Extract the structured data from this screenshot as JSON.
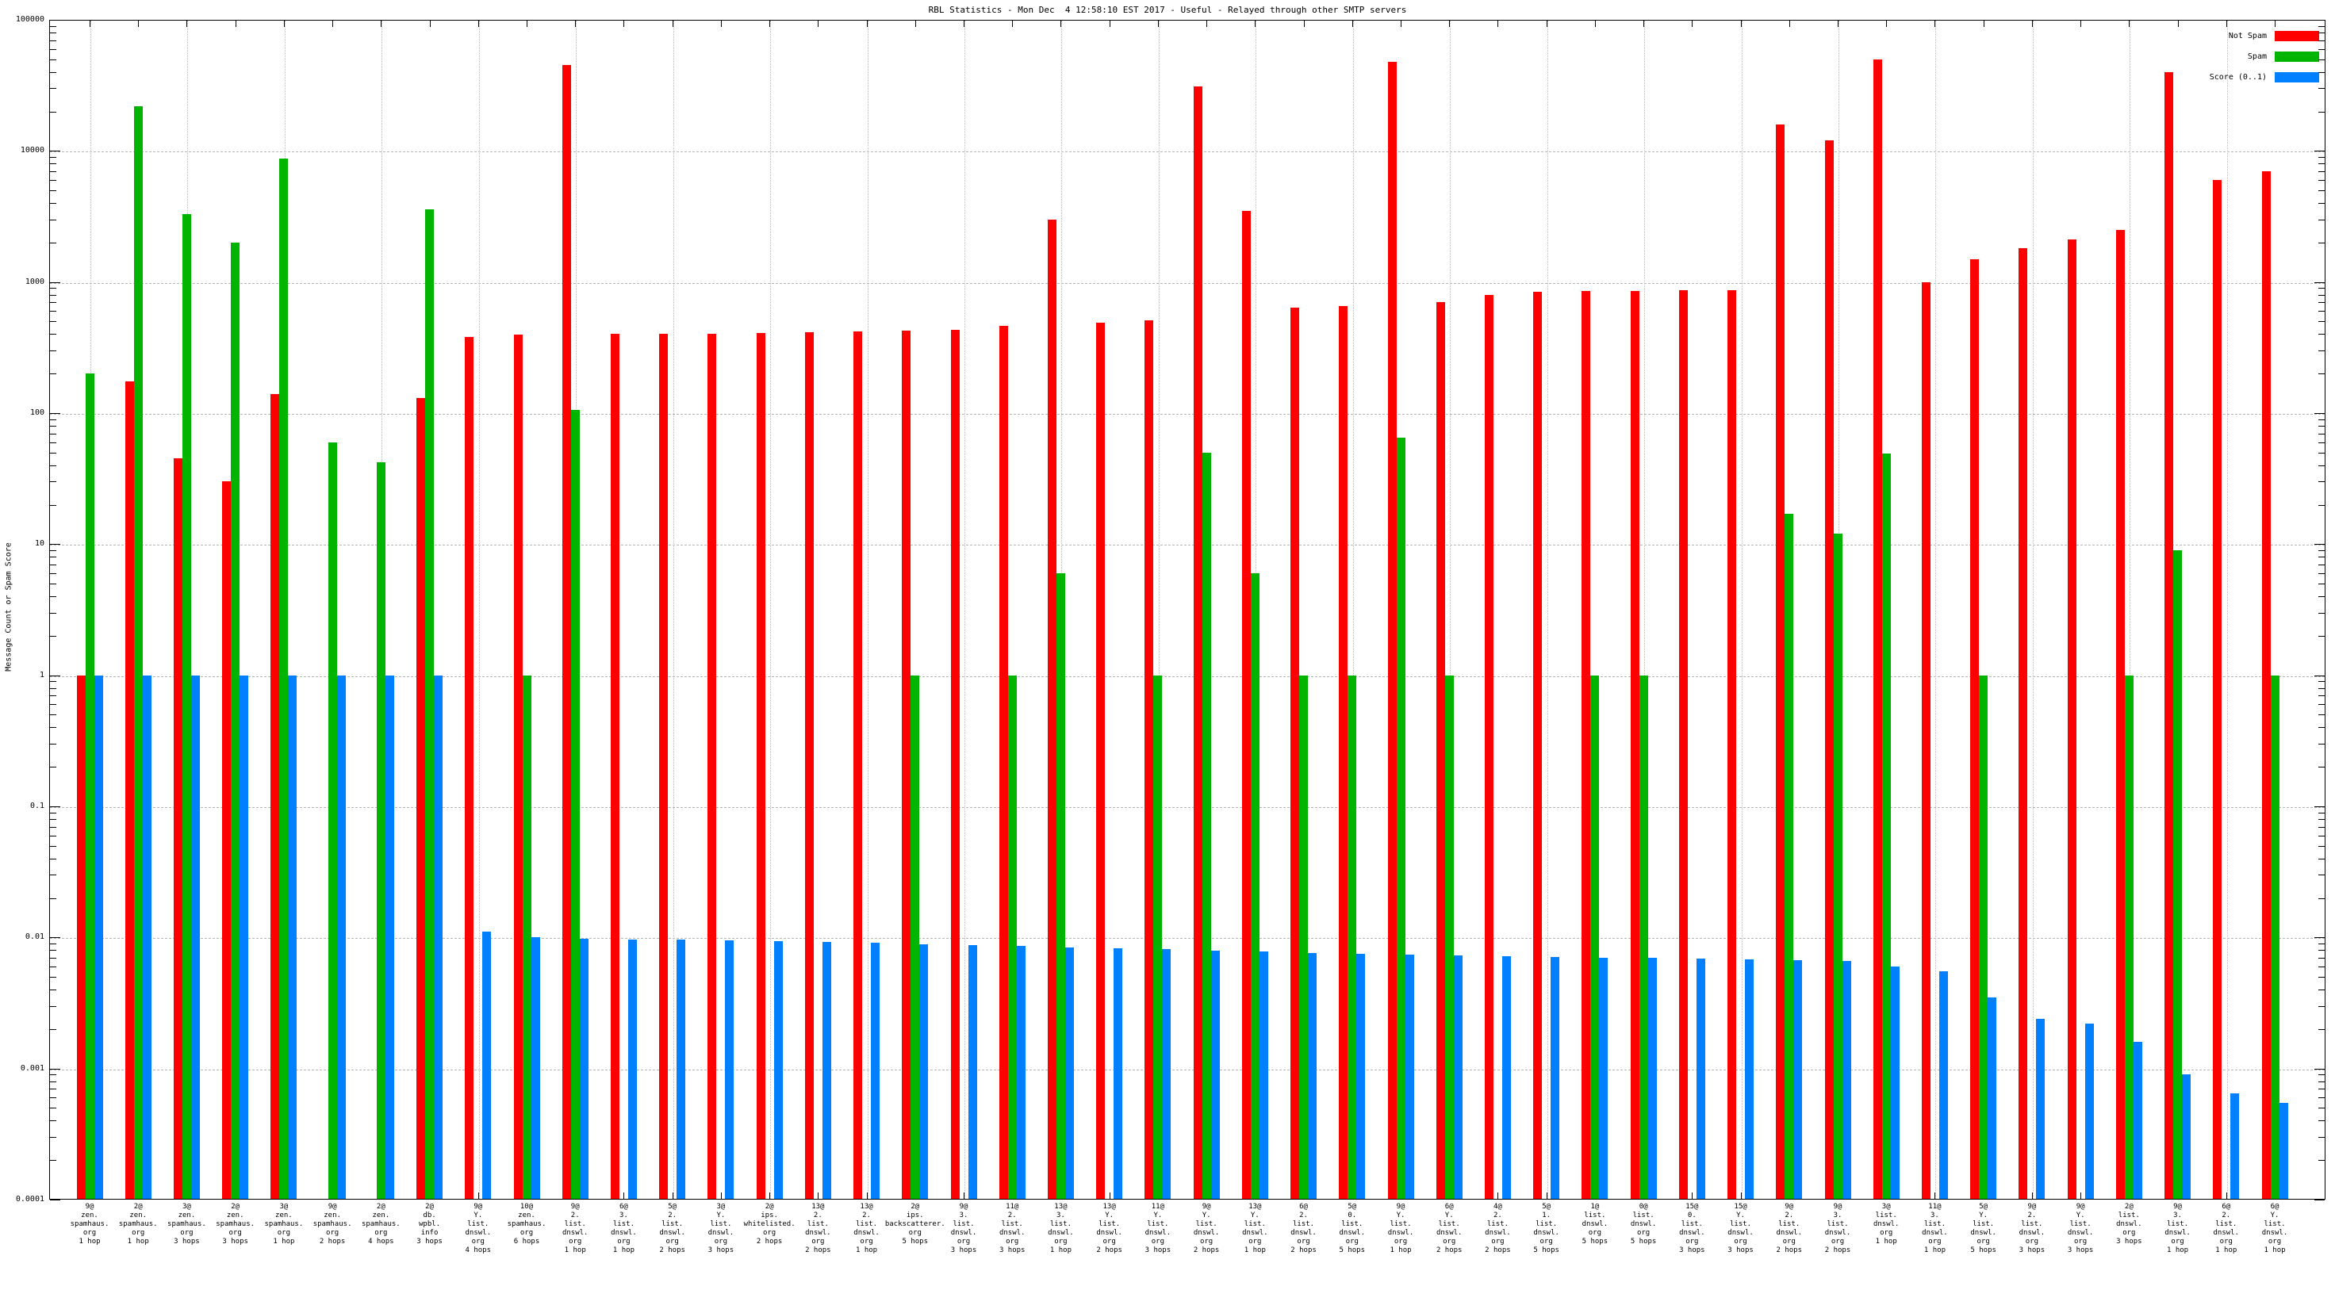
{
  "title": "RBL Statistics - Mon Dec  4 12:58:10 EST 2017 - Useful - Relayed through other SMTP servers",
  "ylabel": "Message Count or Spam Score",
  "legend": [
    {
      "label": "Not Spam",
      "color": "#ff0000"
    },
    {
      "label": "Spam",
      "color": "#00b400"
    },
    {
      "label": "Score (0..1)",
      "color": "#0080ff"
    }
  ],
  "colors": {
    "not_spam": "#ff0000",
    "spam": "#00b400",
    "score": "#0080ff",
    "grid": "#b5b5b5"
  },
  "chart_data": {
    "type": "bar",
    "log_scale": true,
    "ylim": [
      0.0001,
      100000
    ],
    "ytick_labels": [
      "100000",
      "10000",
      "1000",
      "100",
      "10",
      "1",
      "0.1",
      "0.01",
      "0.001",
      "0.0001"
    ],
    "grid": "horizontal dashed per decade, vertical dotted every other category",
    "legend_position": "top-right",
    "categories": [
      [
        "9@",
        "zen.",
        "spamhaus.",
        "org",
        "1 hop"
      ],
      [
        "2@",
        "zen.",
        "spamhaus.",
        "org",
        "1 hop"
      ],
      [
        "3@",
        "zen.",
        "spamhaus.",
        "org",
        "3 hops"
      ],
      [
        "2@",
        "zen.",
        "spamhaus.",
        "org",
        "3 hops"
      ],
      [
        "3@",
        "zen.",
        "spamhaus.",
        "org",
        "1 hop"
      ],
      [
        "9@",
        "zen.",
        "spamhaus.",
        "org",
        "2 hops"
      ],
      [
        "2@",
        "zen.",
        "spamhaus.",
        "org",
        "4 hops"
      ],
      [
        "2@",
        "db.",
        "wpbl.",
        "info",
        "3 hops"
      ],
      [
        "9@",
        "Y.",
        "list.",
        "dnswl.",
        "org",
        "4 hops"
      ],
      [
        "10@",
        "zen.",
        "spamhaus.",
        "org",
        "6 hops"
      ],
      [
        "9@",
        "2.",
        "list.",
        "dnswl.",
        "org",
        "1 hop"
      ],
      [
        "6@",
        "3.",
        "list.",
        "dnswl.",
        "org",
        "1 hop"
      ],
      [
        "5@",
        "2.",
        "list.",
        "dnswl.",
        "org",
        "2 hops"
      ],
      [
        "3@",
        "Y.",
        "list.",
        "dnswl.",
        "org",
        "3 hops"
      ],
      [
        "2@",
        "ips.",
        "whitelisted.",
        "org",
        "2 hops"
      ],
      [
        "13@",
        "2.",
        "list.",
        "dnswl.",
        "org",
        "2 hops"
      ],
      [
        "13@",
        "2.",
        "list.",
        "dnswl.",
        "org",
        "1 hop"
      ],
      [
        "2@",
        "ips.",
        "backscatterer.",
        "org",
        "5 hops"
      ],
      [
        "9@",
        "3.",
        "list.",
        "dnswl.",
        "org",
        "3 hops"
      ],
      [
        "11@",
        "2.",
        "list.",
        "dnswl.",
        "org",
        "3 hops"
      ],
      [
        "13@",
        "3.",
        "list.",
        "dnswl.",
        "org",
        "1 hop"
      ],
      [
        "13@",
        "Y.",
        "list.",
        "dnswl.",
        "org",
        "2 hops"
      ],
      [
        "11@",
        "Y.",
        "list.",
        "dnswl.",
        "org",
        "3 hops"
      ],
      [
        "9@",
        "Y.",
        "list.",
        "dnswl.",
        "org",
        "2 hops"
      ],
      [
        "13@",
        "Y.",
        "list.",
        "dnswl.",
        "org",
        "1 hop"
      ],
      [
        "6@",
        "2.",
        "list.",
        "dnswl.",
        "org",
        "2 hops"
      ],
      [
        "5@",
        "0.",
        "list.",
        "dnswl.",
        "org",
        "5 hops"
      ],
      [
        "9@",
        "Y.",
        "list.",
        "dnswl.",
        "org",
        "1 hop"
      ],
      [
        "6@",
        "Y.",
        "list.",
        "dnswl.",
        "org",
        "2 hops"
      ],
      [
        "4@",
        "2.",
        "list.",
        "dnswl.",
        "org",
        "2 hops"
      ],
      [
        "5@",
        "1.",
        "list.",
        "dnswl.",
        "org",
        "5 hops"
      ],
      [
        "1@",
        "list.",
        "dnswl.",
        "org",
        "5 hops"
      ],
      [
        "0@",
        "list.",
        "dnswl.",
        "org",
        "5 hops"
      ],
      [
        "15@",
        "0.",
        "list.",
        "dnswl.",
        "org",
        "3 hops"
      ],
      [
        "15@",
        "Y.",
        "list.",
        "dnswl.",
        "org",
        "3 hops"
      ],
      [
        "9@",
        "2.",
        "list.",
        "dnswl.",
        "org",
        "2 hops"
      ],
      [
        "9@",
        "3.",
        "list.",
        "dnswl.",
        "org",
        "2 hops"
      ],
      [
        "3@",
        "list.",
        "dnswl.",
        "org",
        "1 hop"
      ],
      [
        "11@",
        "3.",
        "list.",
        "dnswl.",
        "org",
        "1 hop"
      ],
      [
        "5@",
        "Y.",
        "list.",
        "dnswl.",
        "org",
        "5 hops"
      ],
      [
        "9@",
        "2.",
        "list.",
        "dnswl.",
        "org",
        "3 hops"
      ],
      [
        "9@",
        "Y.",
        "list.",
        "dnswl.",
        "org",
        "3 hops"
      ],
      [
        "2@",
        "list.",
        "dnswl.",
        "org",
        "3 hops"
      ],
      [
        "9@",
        "3.",
        "list.",
        "dnswl.",
        "org",
        "1 hop"
      ],
      [
        "6@",
        "2.",
        "list.",
        "dnswl.",
        "org",
        "1 hop"
      ],
      [
        "6@",
        "Y.",
        "list.",
        "dnswl.",
        "org",
        "1 hop"
      ]
    ],
    "series": [
      {
        "name": "Not Spam",
        "color": "#ff0000",
        "values": [
          1,
          175,
          45,
          30,
          140,
          0,
          0,
          130,
          380,
          395,
          45000,
          400,
          400,
          405,
          410,
          415,
          420,
          425,
          430,
          465,
          3000,
          490,
          510,
          31000,
          3500,
          640,
          660,
          48000,
          700,
          800,
          840,
          850,
          855,
          860,
          865,
          16000,
          12000,
          50000,
          1000,
          1500,
          1800,
          2100,
          2500,
          40000,
          6000,
          7000
        ]
      },
      {
        "name": "Spam",
        "color": "#00b400",
        "values": [
          200,
          22000,
          3300,
          2000,
          8800,
          60,
          42,
          3600,
          0,
          1,
          105,
          0,
          0,
          0,
          0,
          0,
          0,
          1,
          0,
          1,
          6,
          0,
          1,
          50,
          6,
          1,
          1,
          65,
          1,
          0,
          0,
          1,
          1,
          0,
          0,
          17,
          12,
          49,
          0,
          1,
          0,
          0,
          1,
          9,
          0,
          1
        ]
      },
      {
        "name": "Score (0..1)",
        "color": "#0080ff",
        "values": [
          1,
          1,
          1,
          1,
          1,
          1,
          1,
          1,
          0.011,
          0.01,
          0.0098,
          0.0097,
          0.0096,
          0.0095,
          0.0094,
          0.0092,
          0.0091,
          0.0089,
          0.0088,
          0.0086,
          0.0084,
          0.0083,
          0.0081,
          0.0079,
          0.0078,
          0.0076,
          0.0075,
          0.0074,
          0.0073,
          0.0072,
          0.0071,
          0.007,
          0.007,
          0.0069,
          0.0068,
          0.0067,
          0.0066,
          0.006,
          0.0055,
          0.0035,
          0.0024,
          0.0022,
          0.0016,
          0.0009,
          0.00065,
          0.00055
        ]
      }
    ]
  }
}
